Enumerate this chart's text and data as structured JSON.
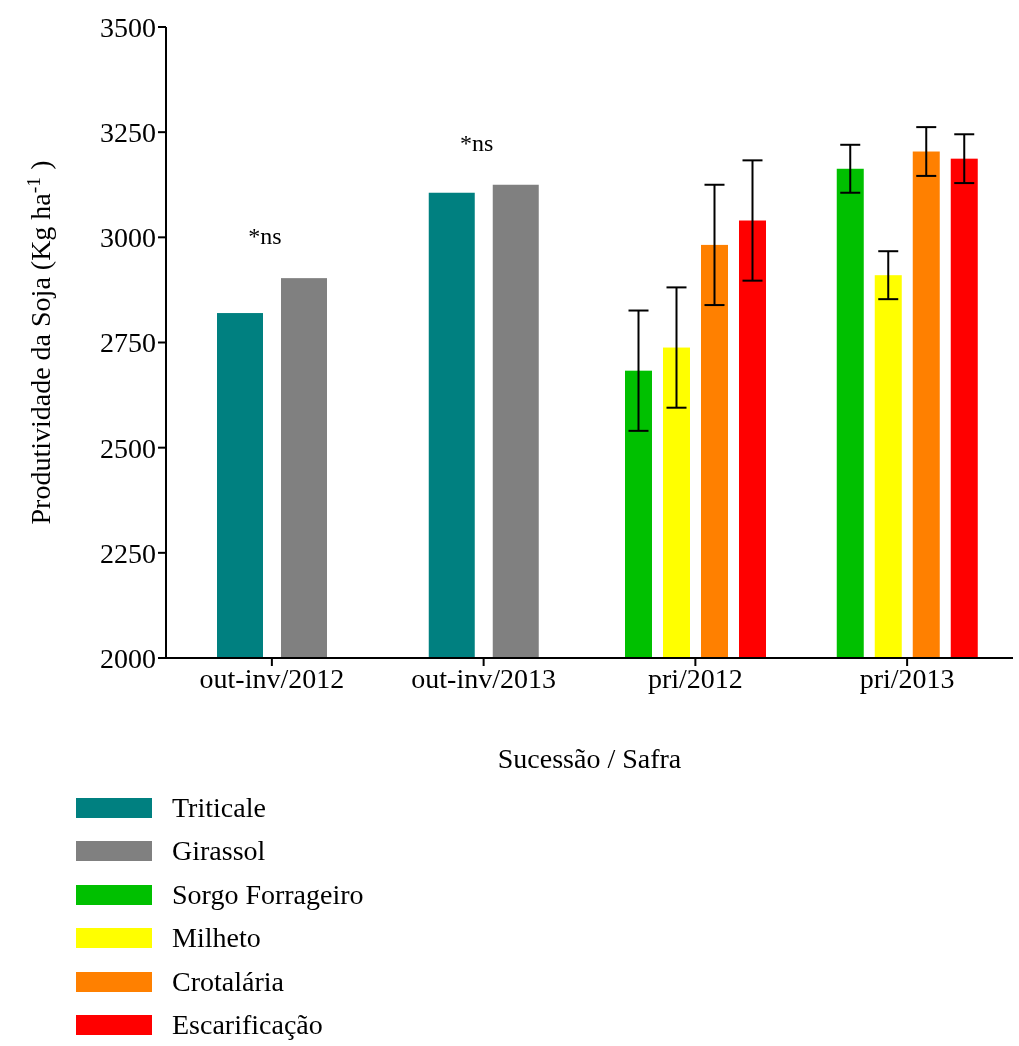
{
  "chart_data": {
    "type": "bar",
    "xlabel": "Sucessão / Safra",
    "ylabel": "Produtividade da Soja (Kg ha$^{-1}$)",
    "categories": [
      "out-inv/2012",
      "out-inv/2013",
      "pri/2012",
      "pri/2013"
    ],
    "series": [
      {
        "name": "Triticale",
        "color": "#008080",
        "values": [
          2820,
          3106,
          null,
          null
        ]
      },
      {
        "name": "Girassol",
        "color": "#808080",
        "values": [
          2903,
          3125,
          null,
          null
        ]
      },
      {
        "name": "Sorgo Forrageiro",
        "color": "#00c000",
        "values": [
          null,
          null,
          2683,
          3163
        ],
        "errors": [
          null,
          null,
          143,
          57
        ]
      },
      {
        "name": "Milheto",
        "color": "#ffff00",
        "values": [
          null,
          null,
          2738,
          2910
        ],
        "errors": [
          null,
          null,
          143,
          57
        ]
      },
      {
        "name": "Crotalária",
        "color": "#ff8000",
        "values": [
          null,
          null,
          2982,
          3204
        ],
        "errors": [
          null,
          null,
          143,
          58
        ]
      },
      {
        "name": "Escarificação",
        "color": "#ff0000",
        "values": [
          null,
          null,
          3040,
          3187
        ],
        "errors": [
          null,
          null,
          143,
          58
        ]
      }
    ],
    "annotations": [
      "*ns",
      "*ns"
    ],
    "ylim": [
      2000,
      3500
    ],
    "yticks": [
      2000,
      2250,
      2500,
      2750,
      3000,
      3250,
      3500
    ],
    "grid": false,
    "legend": "bottom left"
  }
}
